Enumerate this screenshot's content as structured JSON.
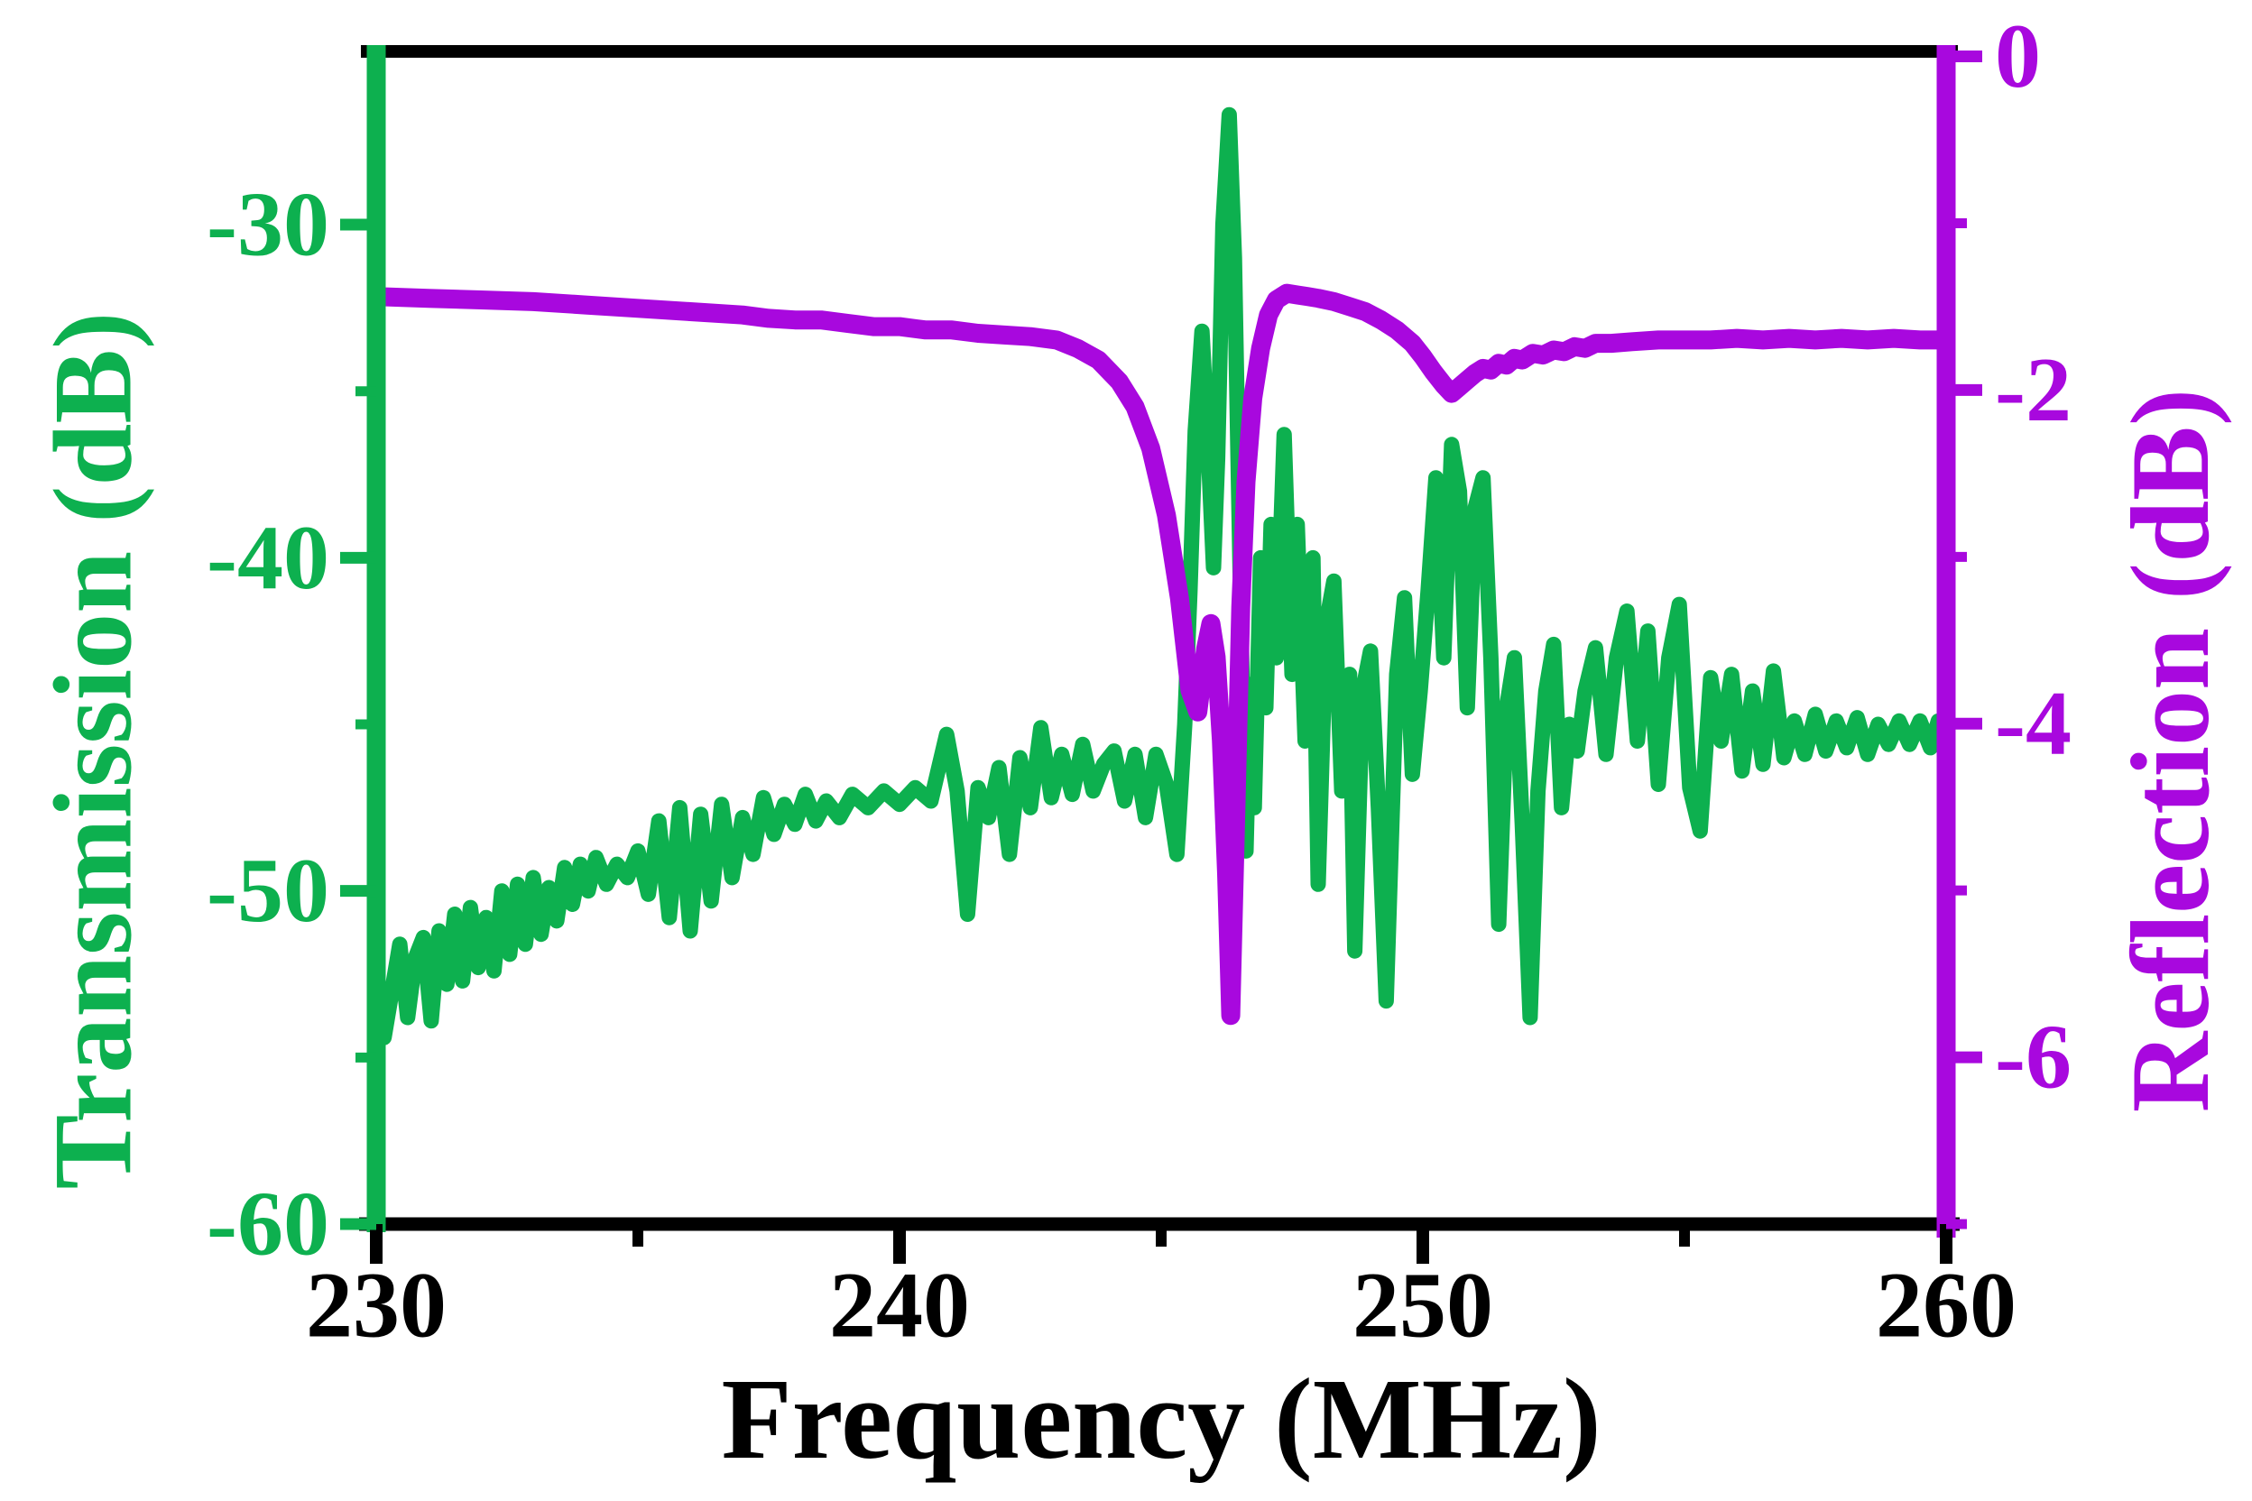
{
  "figure": {
    "background": "#ffffff",
    "plot_border_color": "#000000"
  },
  "chart_data": {
    "type": "line",
    "title": "",
    "xlabel": "Frequency (MHz)",
    "xlim": [
      230,
      260
    ],
    "x_major_ticks": [
      230,
      240,
      250,
      260
    ],
    "x_minor_ticks": [
      235,
      245,
      255
    ],
    "grid": "off",
    "legend": "none",
    "axes": {
      "left": {
        "label": "Transmission (dB)",
        "color": "#0db04f",
        "major_ticks": [
          -30,
          -40,
          -50,
          -60
        ],
        "minor_ticks": [
          -35,
          -45,
          -55
        ],
        "range_top": -24.8,
        "range_bottom": -60
      },
      "right": {
        "label": "Reflection (dB)",
        "color": "#a808de",
        "major_ticks": [
          0,
          -2,
          -4,
          -6
        ],
        "minor_ticks": [
          -1,
          -3,
          -5,
          -7
        ],
        "range_top": 0.03,
        "range_bottom": -7.0
      }
    },
    "series": [
      {
        "name": "Transmission",
        "axis": "left",
        "color": "#0db04f",
        "stroke_width": 17,
        "points": [
          [
            230.0,
            -53.0
          ],
          [
            230.15,
            -54.4
          ],
          [
            230.3,
            -53.0
          ],
          [
            230.45,
            -51.6
          ],
          [
            230.6,
            -53.8
          ],
          [
            230.75,
            -52.0
          ],
          [
            230.9,
            -51.4
          ],
          [
            231.05,
            -53.9
          ],
          [
            231.2,
            -51.2
          ],
          [
            231.35,
            -52.8
          ],
          [
            231.5,
            -50.7
          ],
          [
            231.65,
            -52.7
          ],
          [
            231.8,
            -50.5
          ],
          [
            231.95,
            -52.3
          ],
          [
            232.1,
            -50.8
          ],
          [
            232.25,
            -52.4
          ],
          [
            232.4,
            -50.0
          ],
          [
            232.55,
            -51.9
          ],
          [
            232.7,
            -49.8
          ],
          [
            232.85,
            -51.6
          ],
          [
            233.0,
            -49.6
          ],
          [
            233.15,
            -51.3
          ],
          [
            233.3,
            -49.9
          ],
          [
            233.45,
            -50.9
          ],
          [
            233.6,
            -49.3
          ],
          [
            233.75,
            -50.4
          ],
          [
            233.9,
            -49.2
          ],
          [
            234.05,
            -50.0
          ],
          [
            234.2,
            -49.0
          ],
          [
            234.4,
            -49.8
          ],
          [
            234.6,
            -49.2
          ],
          [
            234.8,
            -49.6
          ],
          [
            235.0,
            -48.8
          ],
          [
            235.2,
            -50.1
          ],
          [
            235.4,
            -47.9
          ],
          [
            235.6,
            -50.8
          ],
          [
            235.8,
            -47.5
          ],
          [
            236.0,
            -51.2
          ],
          [
            236.2,
            -47.7
          ],
          [
            236.4,
            -50.3
          ],
          [
            236.6,
            -47.4
          ],
          [
            236.8,
            -49.6
          ],
          [
            237.0,
            -47.8
          ],
          [
            237.2,
            -48.9
          ],
          [
            237.4,
            -47.2
          ],
          [
            237.6,
            -48.3
          ],
          [
            237.8,
            -47.4
          ],
          [
            238.0,
            -48.0
          ],
          [
            238.2,
            -47.1
          ],
          [
            238.4,
            -47.9
          ],
          [
            238.6,
            -47.3
          ],
          [
            238.85,
            -47.8
          ],
          [
            239.1,
            -47.1
          ],
          [
            239.4,
            -47.5
          ],
          [
            239.7,
            -47.0
          ],
          [
            240.0,
            -47.4
          ],
          [
            240.3,
            -46.9
          ],
          [
            240.6,
            -47.3
          ],
          [
            240.9,
            -45.3
          ],
          [
            241.1,
            -47.0
          ],
          [
            241.3,
            -50.7
          ],
          [
            241.5,
            -46.9
          ],
          [
            241.7,
            -47.8
          ],
          [
            241.9,
            -46.3
          ],
          [
            242.1,
            -48.9
          ],
          [
            242.3,
            -46.0
          ],
          [
            242.5,
            -47.5
          ],
          [
            242.7,
            -45.1
          ],
          [
            242.9,
            -47.2
          ],
          [
            243.1,
            -45.9
          ],
          [
            243.3,
            -47.1
          ],
          [
            243.5,
            -45.6
          ],
          [
            243.7,
            -47.0
          ],
          [
            243.9,
            -46.2
          ],
          [
            244.1,
            -45.8
          ],
          [
            244.3,
            -47.3
          ],
          [
            244.5,
            -45.9
          ],
          [
            244.7,
            -47.8
          ],
          [
            244.9,
            -45.9
          ],
          [
            245.1,
            -46.8
          ],
          [
            245.3,
            -48.9
          ],
          [
            245.45,
            -45.0
          ],
          [
            245.55,
            -41.0
          ],
          [
            245.65,
            -36.2
          ],
          [
            245.78,
            -33.2
          ],
          [
            245.9,
            -36.8
          ],
          [
            246.0,
            -40.3
          ],
          [
            246.08,
            -37.0
          ],
          [
            246.18,
            -30.0
          ],
          [
            246.3,
            -26.7
          ],
          [
            246.4,
            -31.0
          ],
          [
            246.48,
            -38.0
          ],
          [
            246.55,
            -44.0
          ],
          [
            246.62,
            -48.8
          ],
          [
            246.7,
            -43.8
          ],
          [
            246.78,
            -47.5
          ],
          [
            246.9,
            -40.0
          ],
          [
            247.0,
            -44.5
          ],
          [
            247.1,
            -39.0
          ],
          [
            247.2,
            -43.0
          ],
          [
            247.35,
            -36.3
          ],
          [
            247.5,
            -43.5
          ],
          [
            247.6,
            -39.0
          ],
          [
            247.75,
            -45.5
          ],
          [
            247.9,
            -40.0
          ],
          [
            248.0,
            -49.8
          ],
          [
            248.15,
            -42.0
          ],
          [
            248.3,
            -40.7
          ],
          [
            248.45,
            -47.0
          ],
          [
            248.6,
            -43.5
          ],
          [
            248.7,
            -51.8
          ],
          [
            248.85,
            -44.0
          ],
          [
            249.0,
            -42.8
          ],
          [
            249.15,
            -47.5
          ],
          [
            249.3,
            -53.3
          ],
          [
            249.5,
            -43.5
          ],
          [
            249.65,
            -41.2
          ],
          [
            249.8,
            -46.5
          ],
          [
            249.95,
            -44.0
          ],
          [
            250.1,
            -41.0
          ],
          [
            250.25,
            -37.6
          ],
          [
            250.4,
            -43.0
          ],
          [
            250.55,
            -36.6
          ],
          [
            250.7,
            -38.0
          ],
          [
            250.85,
            -44.5
          ],
          [
            251.0,
            -38.5
          ],
          [
            251.15,
            -37.6
          ],
          [
            251.3,
            -43.0
          ],
          [
            251.45,
            -51.0
          ],
          [
            251.6,
            -44.5
          ],
          [
            251.75,
            -43.0
          ],
          [
            251.9,
            -48.0
          ],
          [
            252.05,
            -53.8
          ],
          [
            252.2,
            -47.0
          ],
          [
            252.35,
            -44.0
          ],
          [
            252.5,
            -42.6
          ],
          [
            252.65,
            -47.5
          ],
          [
            252.8,
            -45.0
          ],
          [
            252.95,
            -45.8
          ],
          [
            253.1,
            -44.0
          ],
          [
            253.3,
            -42.7
          ],
          [
            253.5,
            -45.9
          ],
          [
            253.7,
            -43.0
          ],
          [
            253.9,
            -41.6
          ],
          [
            254.1,
            -45.5
          ],
          [
            254.3,
            -42.2
          ],
          [
            254.5,
            -46.8
          ],
          [
            254.7,
            -43.0
          ],
          [
            254.9,
            -41.4
          ],
          [
            255.1,
            -46.9
          ],
          [
            255.3,
            -48.2
          ],
          [
            255.5,
            -43.6
          ],
          [
            255.7,
            -45.5
          ],
          [
            255.9,
            -43.5
          ],
          [
            256.1,
            -46.4
          ],
          [
            256.3,
            -44.0
          ],
          [
            256.5,
            -46.2
          ],
          [
            256.7,
            -43.4
          ],
          [
            256.9,
            -46.0
          ],
          [
            257.1,
            -44.9
          ],
          [
            257.3,
            -45.9
          ],
          [
            257.5,
            -44.7
          ],
          [
            257.7,
            -45.8
          ],
          [
            257.9,
            -44.9
          ],
          [
            258.1,
            -45.7
          ],
          [
            258.3,
            -44.8
          ],
          [
            258.5,
            -45.9
          ],
          [
            258.7,
            -45.0
          ],
          [
            258.9,
            -45.6
          ],
          [
            259.1,
            -44.9
          ],
          [
            259.3,
            -45.6
          ],
          [
            259.5,
            -44.9
          ],
          [
            259.7,
            -45.7
          ],
          [
            259.85,
            -44.9
          ],
          [
            260.0,
            -45.7
          ]
        ]
      },
      {
        "name": "Reflection",
        "axis": "right",
        "color": "#a808de",
        "stroke_width": 21,
        "points": [
          [
            230.0,
            -1.44
          ],
          [
            231.0,
            -1.45
          ],
          [
            232.0,
            -1.46
          ],
          [
            233.0,
            -1.47
          ],
          [
            234.0,
            -1.49
          ],
          [
            235.0,
            -1.51
          ],
          [
            236.0,
            -1.53
          ],
          [
            237.0,
            -1.55
          ],
          [
            237.5,
            -1.57
          ],
          [
            238.0,
            -1.58
          ],
          [
            238.5,
            -1.58
          ],
          [
            239.0,
            -1.6
          ],
          [
            239.5,
            -1.62
          ],
          [
            240.0,
            -1.62
          ],
          [
            240.5,
            -1.64
          ],
          [
            241.0,
            -1.64
          ],
          [
            241.5,
            -1.66
          ],
          [
            242.0,
            -1.67
          ],
          [
            242.5,
            -1.68
          ],
          [
            243.0,
            -1.7
          ],
          [
            243.4,
            -1.75
          ],
          [
            243.8,
            -1.82
          ],
          [
            244.2,
            -1.95
          ],
          [
            244.5,
            -2.1
          ],
          [
            244.8,
            -2.35
          ],
          [
            245.1,
            -2.75
          ],
          [
            245.35,
            -3.25
          ],
          [
            245.55,
            -3.8
          ],
          [
            245.7,
            -3.93
          ],
          [
            245.85,
            -3.55
          ],
          [
            245.95,
            -3.4
          ],
          [
            246.05,
            -3.6
          ],
          [
            246.15,
            -4.1
          ],
          [
            246.25,
            -4.9
          ],
          [
            246.33,
            -5.75
          ],
          [
            246.42,
            -4.6
          ],
          [
            246.52,
            -3.3
          ],
          [
            246.62,
            -2.55
          ],
          [
            246.75,
            -2.05
          ],
          [
            246.9,
            -1.75
          ],
          [
            247.05,
            -1.55
          ],
          [
            247.2,
            -1.46
          ],
          [
            247.4,
            -1.42
          ],
          [
            247.6,
            -1.43
          ],
          [
            247.8,
            -1.44
          ],
          [
            248.0,
            -1.45
          ],
          [
            248.3,
            -1.47
          ],
          [
            248.6,
            -1.5
          ],
          [
            248.9,
            -1.53
          ],
          [
            249.2,
            -1.58
          ],
          [
            249.5,
            -1.64
          ],
          [
            249.8,
            -1.72
          ],
          [
            250.0,
            -1.8
          ],
          [
            250.2,
            -1.89
          ],
          [
            250.4,
            -1.97
          ],
          [
            250.55,
            -2.02
          ],
          [
            250.7,
            -1.98
          ],
          [
            250.85,
            -1.94
          ],
          [
            251.0,
            -1.9
          ],
          [
            251.15,
            -1.87
          ],
          [
            251.3,
            -1.88
          ],
          [
            251.45,
            -1.84
          ],
          [
            251.6,
            -1.85
          ],
          [
            251.75,
            -1.81
          ],
          [
            251.9,
            -1.82
          ],
          [
            252.1,
            -1.78
          ],
          [
            252.3,
            -1.79
          ],
          [
            252.5,
            -1.76
          ],
          [
            252.7,
            -1.77
          ],
          [
            252.9,
            -1.74
          ],
          [
            253.1,
            -1.75
          ],
          [
            253.3,
            -1.72
          ],
          [
            253.6,
            -1.72
          ],
          [
            254.0,
            -1.71
          ],
          [
            254.5,
            -1.7
          ],
          [
            255.0,
            -1.7
          ],
          [
            255.5,
            -1.7
          ],
          [
            256.0,
            -1.69
          ],
          [
            256.5,
            -1.7
          ],
          [
            257.0,
            -1.69
          ],
          [
            257.5,
            -1.7
          ],
          [
            258.0,
            -1.69
          ],
          [
            258.5,
            -1.7
          ],
          [
            259.0,
            -1.69
          ],
          [
            259.5,
            -1.7
          ],
          [
            260.0,
            -1.7
          ]
        ]
      }
    ]
  }
}
